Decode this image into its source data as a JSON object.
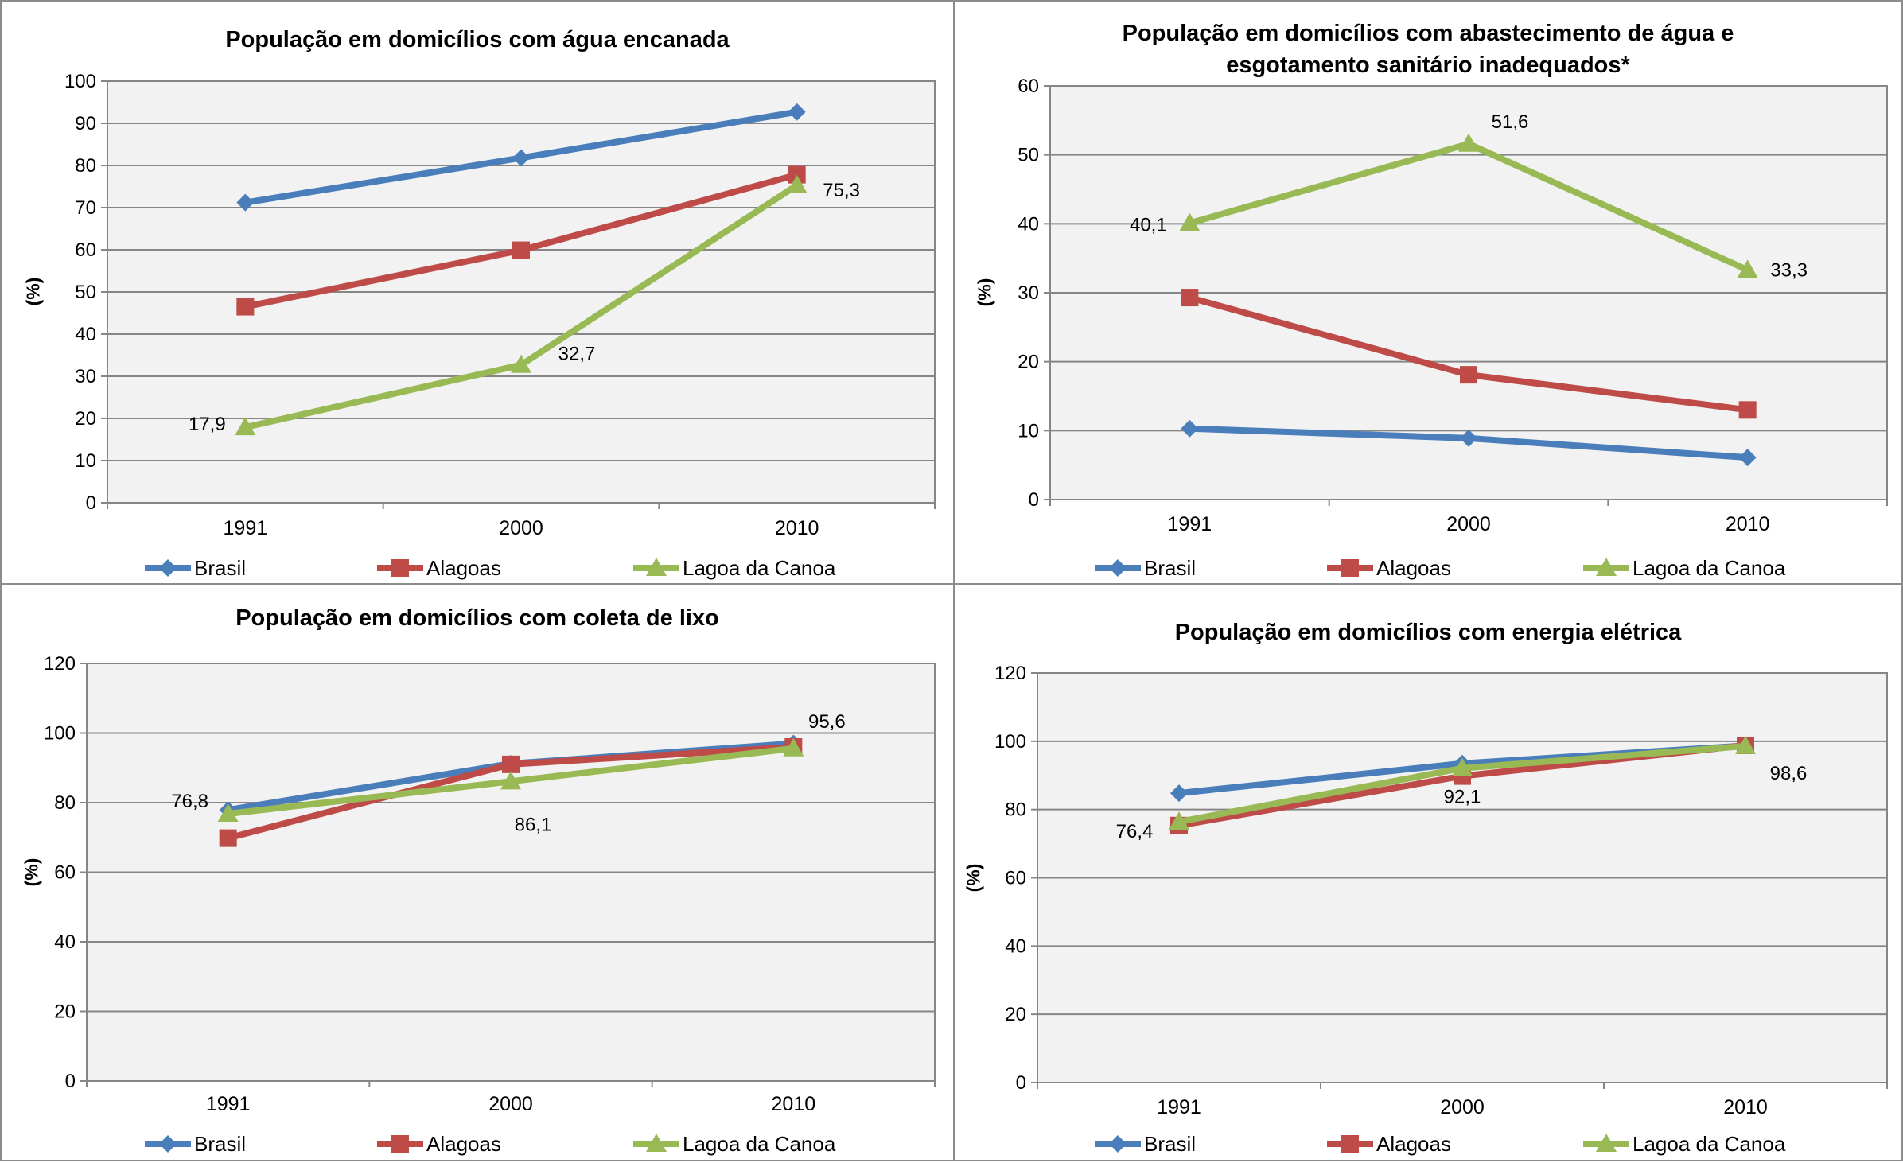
{
  "legend": [
    "Brasil",
    "Alagoas",
    "Lagoa da Canoa"
  ],
  "colors": {
    "Brasil": "#4a7ebb",
    "Alagoas": "#be4b48",
    "Lagoa da Canoa": "#98b954"
  },
  "chart_data": [
    {
      "type": "line",
      "title": [
        "População em domicílios com água encanada"
      ],
      "ylabel": "(%)",
      "categories": [
        "1991",
        "2000",
        "2010"
      ],
      "ylim": [
        0,
        100
      ],
      "yticks": [
        "0",
        "10",
        "20",
        "30",
        "40",
        "50",
        "60",
        "70",
        "80",
        "90",
        "100"
      ],
      "grid": true,
      "legend_position": "bottom",
      "series": [
        {
          "name": "Brasil",
          "values": [
            71.2,
            81.8,
            92.7
          ]
        },
        {
          "name": "Alagoas",
          "values": [
            46.5,
            59.9,
            77.8
          ]
        },
        {
          "name": "Lagoa da Canoa",
          "values": [
            17.9,
            32.7,
            75.3
          ]
        }
      ],
      "data_labels": [
        {
          "series": 2,
          "index": 0,
          "text": "17,9"
        },
        {
          "series": 2,
          "index": 1,
          "text": "32,7"
        },
        {
          "series": 2,
          "index": 2,
          "text": "75,3"
        }
      ]
    },
    {
      "type": "line",
      "title": [
        "População em domicílios com abastecimento de água e",
        "esgotamento sanitário inadequados*"
      ],
      "ylabel": "(%)",
      "categories": [
        "1991",
        "2000",
        "2010"
      ],
      "ylim": [
        0,
        60
      ],
      "yticks": [
        "0",
        "10",
        "20",
        "30",
        "40",
        "50",
        "60"
      ],
      "grid": true,
      "legend_position": "bottom",
      "series": [
        {
          "name": "Brasil",
          "values": [
            10.3,
            8.9,
            6.1
          ]
        },
        {
          "name": "Alagoas",
          "values": [
            29.3,
            18.1,
            13.0
          ]
        },
        {
          "name": "Lagoa da Canoa",
          "values": [
            40.1,
            51.6,
            33.3
          ]
        }
      ],
      "data_labels": [
        {
          "series": 2,
          "index": 0,
          "text": "40,1"
        },
        {
          "series": 2,
          "index": 1,
          "text": "51,6"
        },
        {
          "series": 2,
          "index": 2,
          "text": "33,3"
        }
      ]
    },
    {
      "type": "line",
      "title": [
        "População em domicílios com coleta de lixo"
      ],
      "ylabel": "(%)",
      "categories": [
        "1991",
        "2000",
        "2010"
      ],
      "ylim": [
        0,
        120
      ],
      "yticks": [
        "0",
        "20",
        "40",
        "60",
        "80",
        "100",
        "120"
      ],
      "grid": true,
      "legend_position": "bottom",
      "series": [
        {
          "name": "Brasil",
          "values": [
            77.9,
            91.2,
            97.0
          ]
        },
        {
          "name": "Alagoas",
          "values": [
            69.8,
            91.0,
            96.0
          ]
        },
        {
          "name": "Lagoa da Canoa",
          "values": [
            76.8,
            86.1,
            95.6
          ]
        }
      ],
      "data_labels": [
        {
          "series": 2,
          "index": 0,
          "text": "76,8"
        },
        {
          "series": 2,
          "index": 1,
          "text": "86,1"
        },
        {
          "series": 2,
          "index": 2,
          "text": "95,6"
        }
      ]
    },
    {
      "type": "line",
      "title": [
        "População em domicílios com energia elétrica"
      ],
      "ylabel": "(%)",
      "categories": [
        "1991",
        "2000",
        "2010"
      ],
      "ylim": [
        0,
        120
      ],
      "yticks": [
        "0",
        "20",
        "40",
        "60",
        "80",
        "100",
        "120"
      ],
      "grid": true,
      "legend_position": "bottom",
      "series": [
        {
          "name": "Brasil",
          "values": [
            84.8,
            93.5,
            98.7
          ]
        },
        {
          "name": "Alagoas",
          "values": [
            75.3,
            89.8,
            98.8
          ]
        },
        {
          "name": "Lagoa da Canoa",
          "values": [
            76.4,
            92.1,
            98.6
          ]
        }
      ],
      "data_labels": [
        {
          "series": 2,
          "index": 0,
          "text": "76,4"
        },
        {
          "series": 2,
          "index": 1,
          "text": "92,1"
        },
        {
          "series": 2,
          "index": 2,
          "text": "98,6"
        }
      ]
    }
  ]
}
